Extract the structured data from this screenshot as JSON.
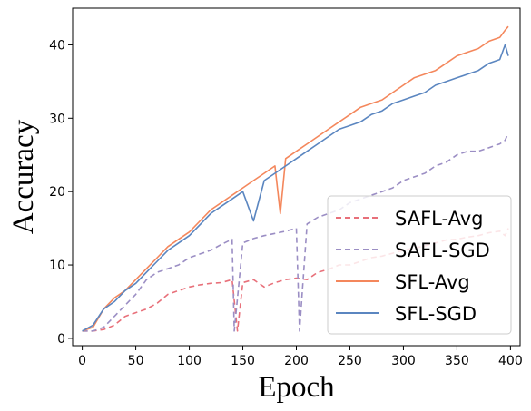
{
  "chart_data": {
    "type": "line",
    "xlabel": "Epoch",
    "ylabel": "Accuracy",
    "xlim": [
      -9,
      409
    ],
    "ylim": [
      -1,
      45
    ],
    "xticks": [
      0,
      50,
      100,
      150,
      200,
      250,
      300,
      350,
      400
    ],
    "yticks": [
      0,
      10,
      20,
      30,
      40
    ],
    "grid": false,
    "legend_position": "bottom-right",
    "series": [
      {
        "name": "SAFL-Avg",
        "color": "#e8707a",
        "dash": "6,4",
        "x": [
          0,
          10,
          20,
          30,
          40,
          50,
          60,
          70,
          80,
          90,
          100,
          110,
          120,
          130,
          140,
          145,
          150,
          160,
          170,
          180,
          190,
          200,
          210,
          220,
          230,
          240,
          250,
          260,
          270,
          280,
          290,
          300,
          310,
          320,
          330,
          340,
          350,
          360,
          370,
          380,
          390,
          395,
          398
        ],
        "y": [
          1,
          1,
          1.2,
          1.8,
          3,
          3.5,
          4,
          4.8,
          6,
          6.5,
          7,
          7.3,
          7.5,
          7.6,
          8,
          1,
          7.6,
          8,
          7,
          7.6,
          8,
          8.2,
          8,
          9,
          9.4,
          10,
          10,
          10.5,
          11,
          11.2,
          11.6,
          12,
          12.3,
          12.6,
          13,
          13.4,
          13.5,
          13.8,
          14,
          14.4,
          14.6,
          14,
          15
        ]
      },
      {
        "name": "SAFL-SGD",
        "color": "#9b8ec4",
        "dash": "6,4",
        "x": [
          0,
          10,
          20,
          30,
          40,
          50,
          60,
          70,
          80,
          90,
          100,
          110,
          120,
          130,
          140,
          142,
          150,
          160,
          170,
          180,
          190,
          200,
          203,
          210,
          220,
          230,
          240,
          250,
          260,
          270,
          280,
          290,
          300,
          310,
          320,
          330,
          340,
          350,
          360,
          370,
          380,
          390,
          395,
          398
        ],
        "y": [
          1,
          1,
          1.5,
          3,
          4.5,
          6,
          8,
          9,
          9.5,
          10,
          11,
          11.5,
          12,
          12.8,
          13.5,
          1,
          13,
          13.6,
          14,
          14.3,
          14.6,
          15,
          1,
          15.6,
          16.5,
          17,
          17.5,
          18.5,
          19,
          19.5,
          20,
          20.5,
          21.5,
          22,
          22.5,
          23.5,
          24,
          25,
          25.5,
          25.5,
          26,
          26.5,
          27,
          28
        ]
      },
      {
        "name": "SFL-Avg",
        "color": "#f4875c",
        "dash": "",
        "x": [
          0,
          10,
          20,
          30,
          40,
          50,
          60,
          70,
          80,
          90,
          100,
          110,
          120,
          130,
          140,
          150,
          160,
          170,
          180,
          185,
          190,
          200,
          210,
          220,
          230,
          240,
          250,
          260,
          270,
          280,
          290,
          300,
          310,
          320,
          330,
          340,
          350,
          360,
          370,
          380,
          390,
          395,
          398
        ],
        "y": [
          1,
          1.5,
          4,
          5.5,
          6.5,
          8,
          9.5,
          11,
          12.5,
          13.5,
          14.5,
          16,
          17.5,
          18.5,
          19.5,
          20.5,
          21.5,
          22.5,
          23.5,
          17,
          24.5,
          25.5,
          26.5,
          27.5,
          28.5,
          29.5,
          30.5,
          31.5,
          32,
          32.5,
          33.5,
          34.5,
          35.5,
          36,
          36.5,
          37.5,
          38.5,
          39,
          39.5,
          40.5,
          41,
          42,
          42.5
        ]
      },
      {
        "name": "SFL-SGD",
        "color": "#5b86c0",
        "dash": "",
        "x": [
          0,
          10,
          20,
          30,
          40,
          50,
          60,
          70,
          80,
          90,
          100,
          110,
          120,
          130,
          140,
          150,
          160,
          170,
          180,
          190,
          200,
          210,
          220,
          230,
          240,
          250,
          260,
          270,
          280,
          290,
          300,
          310,
          320,
          330,
          340,
          350,
          360,
          370,
          380,
          390,
          395,
          398
        ],
        "y": [
          1,
          1.8,
          4,
          5,
          6.5,
          7.5,
          9,
          10.5,
          12,
          13,
          14,
          15.5,
          17,
          18,
          19,
          20,
          16,
          21.5,
          22.5,
          23.5,
          24.5,
          25.5,
          26.5,
          27.5,
          28.5,
          29,
          29.5,
          30.5,
          31,
          32,
          32.5,
          33,
          33.5,
          34.5,
          35,
          35.5,
          36,
          36.5,
          37.5,
          38,
          40,
          38.5
        ]
      }
    ]
  }
}
